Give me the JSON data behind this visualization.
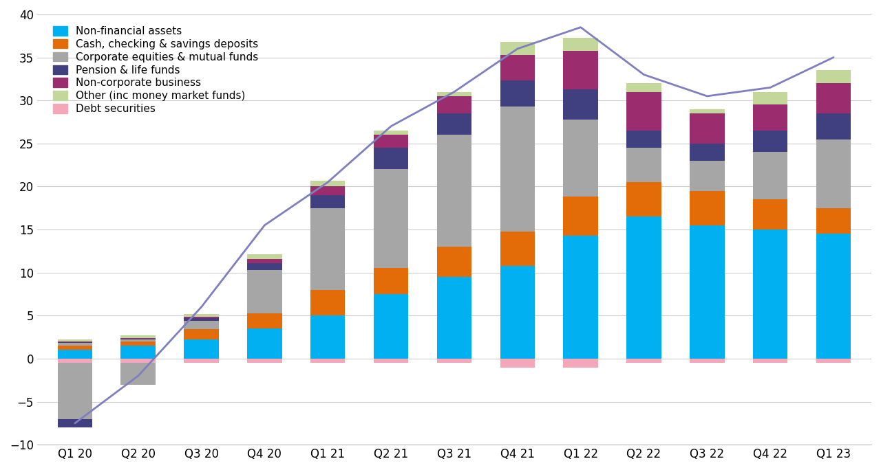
{
  "categories": [
    "Q1 20",
    "Q2 20",
    "Q3 20",
    "Q4 20",
    "Q1 21",
    "Q2 21",
    "Q3 21",
    "Q4 21",
    "Q1 22",
    "Q2 22",
    "Q3 22",
    "Q4 22",
    "Q1 23"
  ],
  "series": {
    "Non-financial assets": [
      1.0,
      1.5,
      2.2,
      3.5,
      5.0,
      7.5,
      9.5,
      10.8,
      14.3,
      16.5,
      15.5,
      15.0,
      14.5
    ],
    "Cash, checking & savings deposits": [
      0.5,
      0.5,
      1.2,
      1.8,
      3.0,
      3.0,
      3.5,
      4.0,
      4.5,
      4.0,
      4.0,
      3.5,
      3.0
    ],
    "Corporate equities & mutual funds": [
      0.3,
      0.2,
      1.0,
      5.0,
      9.5,
      11.5,
      13.0,
      14.5,
      9.0,
      4.0,
      3.5,
      5.5,
      8.0
    ],
    "Pension & life funds": [
      0.1,
      0.1,
      0.3,
      0.8,
      1.5,
      2.5,
      2.5,
      3.0,
      3.5,
      2.0,
      2.0,
      2.5,
      3.0
    ],
    "Non-corporate business": [
      0.1,
      0.1,
      0.2,
      0.5,
      1.0,
      1.5,
      2.0,
      3.0,
      4.5,
      4.5,
      3.5,
      3.0,
      3.5
    ],
    "Other (inc money market funds)": [
      0.2,
      0.3,
      0.3,
      0.5,
      0.7,
      0.5,
      0.5,
      1.5,
      1.5,
      1.0,
      0.5,
      1.5,
      1.5
    ],
    "Debt securities": [
      -0.5,
      -0.5,
      -0.5,
      -0.5,
      -0.5,
      -0.5,
      -0.5,
      -1.0,
      -1.0,
      -0.5,
      -0.5,
      -0.5,
      -0.5
    ]
  },
  "neg_series": {
    "Corporate equities & mutual funds": [
      -6.5,
      -2.5,
      0.0,
      0.0,
      0.0,
      0.0,
      0.0,
      0.0,
      0.0,
      0.0,
      0.0,
      0.0,
      0.0
    ],
    "Pension & life funds": [
      -1.0,
      0.0,
      0.0,
      0.0,
      0.0,
      0.0,
      0.0,
      0.0,
      0.0,
      0.0,
      0.0,
      0.0,
      0.0
    ]
  },
  "line_values": [
    -7.5,
    -2.0,
    6.0,
    15.5,
    20.5,
    27.0,
    31.0,
    36.0,
    38.5,
    33.0,
    30.5,
    31.5,
    35.0
  ],
  "colors": {
    "Non-financial assets": "#00B0F0",
    "Cash, checking & savings deposits": "#E36C09",
    "Corporate equities & mutual funds": "#A6A6A6",
    "Pension & life funds": "#404080",
    "Non-corporate business": "#9B2D6F",
    "Other (inc money market funds)": "#C4D79B",
    "Debt securities": "#F4A7B9"
  },
  "line_color": "#7F7FBF",
  "ylim": [
    -10,
    40
  ],
  "yticks": [
    -10,
    -5,
    0,
    5,
    10,
    15,
    20,
    25,
    30,
    35,
    40
  ],
  "background_color": "#FFFFFF",
  "legend_fontsize": 11,
  "tick_fontsize": 12
}
